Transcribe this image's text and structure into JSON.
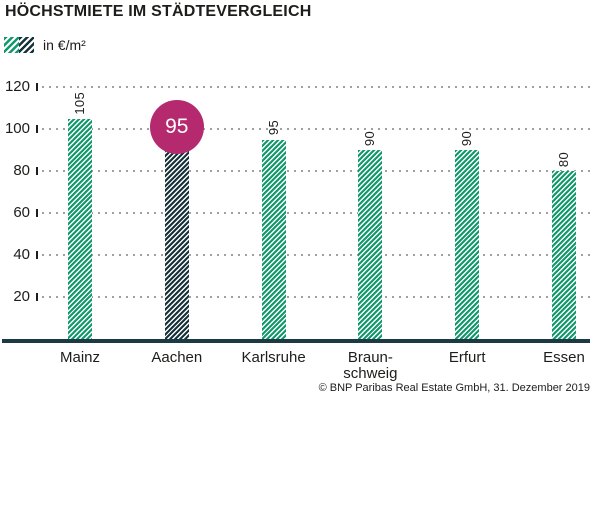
{
  "chart": {
    "title": "HÖCHSTMIETE IM STÄDTEVERGLEICH",
    "legend_label": "in €/m²",
    "source": "© BNP Paribas Real Estate GmbH, 31. Dezember 2019"
  },
  "chart_data": {
    "type": "bar",
    "title": "HÖCHSTMIETE IM STÄDTEVERGLEICH",
    "unit": "€/m²",
    "categories": [
      "Mainz",
      "Aachen",
      "Karlsruhe",
      "Braun-\nschweig",
      "Erfurt",
      "Essen"
    ],
    "values": [
      105,
      95,
      95,
      90,
      90,
      80
    ],
    "value_label_rotation": "vertical-bottom-to-top",
    "highlight": {
      "category": "Aachen",
      "index": 1,
      "value": 95,
      "marker": "magenta-circle",
      "bar_pattern": "dark-diagonal-stripes"
    },
    "default_bar_pattern": "green-diagonal-stripes",
    "legend": [
      {
        "label": "in €/m²",
        "swatch": "half-green-half-dark-diagonal-stripes"
      }
    ],
    "xlabel": "",
    "ylabel": "",
    "ylim": [
      0,
      120
    ],
    "yticks": [
      20,
      40,
      60,
      80,
      100,
      120
    ],
    "grid": "dotted-horizontal",
    "legend_position": "top-left",
    "source": "© BNP Paribas Real Estate GmbH, 31. Dezember 2019",
    "colors": {
      "green": "#12996b",
      "dark": "#17323c",
      "magenta": "#b52a6e",
      "baseline": "#1c3a44",
      "grid": "#a0a0a0",
      "text": "#1d1d1b"
    }
  }
}
